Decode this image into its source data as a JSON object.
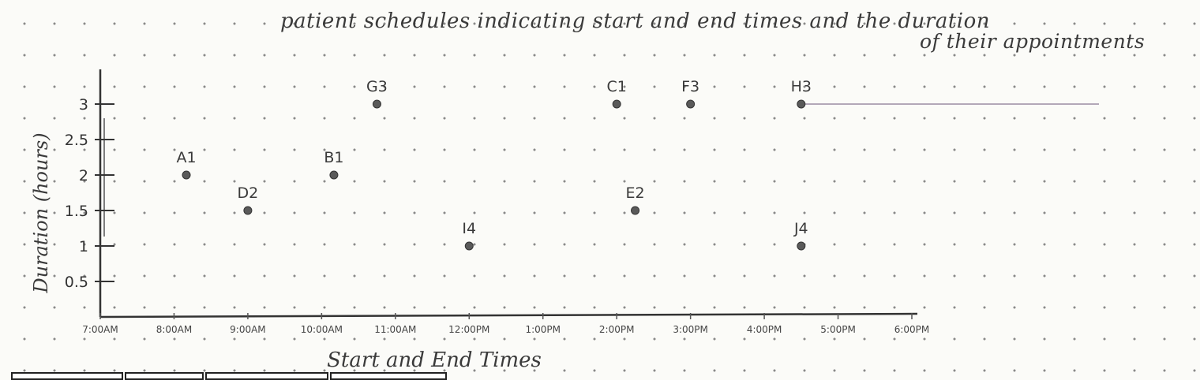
{
  "title_lines": [
    "patient schedules indicating start and end times and the duration",
    "of their appointments"
  ],
  "chart_data": {
    "type": "scatter",
    "xlabel": "Start and End Times",
    "ylabel": "Duration (hours)",
    "x_ticks": [
      "7:00AM",
      "8:00AM",
      "9:00AM",
      "10:00AM",
      "11:00AM",
      "12:00PM",
      "1:00PM",
      "2:00PM",
      "3:00PM",
      "4:00PM",
      "5:00PM",
      "6:00PM"
    ],
    "xlim": [
      "7:00AM",
      "6:00PM"
    ],
    "y_ticks": [
      0.5,
      1,
      1.5,
      2,
      2.5,
      3
    ],
    "ylim": [
      0,
      3.5
    ],
    "grid": false,
    "points": [
      {
        "label": "A1",
        "x": "8:10AM",
        "y": 2
      },
      {
        "label": "D2",
        "x": "9:00AM",
        "y": 1.5
      },
      {
        "label": "B1",
        "x": "10:10AM",
        "y": 2
      },
      {
        "label": "G3",
        "x": "10:45AM",
        "y": 3
      },
      {
        "label": "I4",
        "x": "12:00PM",
        "y": 1
      },
      {
        "label": "C1",
        "x": "2:00PM",
        "y": 3
      },
      {
        "label": "E2",
        "x": "2:15PM",
        "y": 1.5
      },
      {
        "label": "F3",
        "x": "3:00PM",
        "y": 3
      },
      {
        "label": "H3",
        "x": "4:30PM",
        "y": 3
      },
      {
        "label": "J4",
        "x": "4:30PM",
        "y": 1
      }
    ]
  }
}
